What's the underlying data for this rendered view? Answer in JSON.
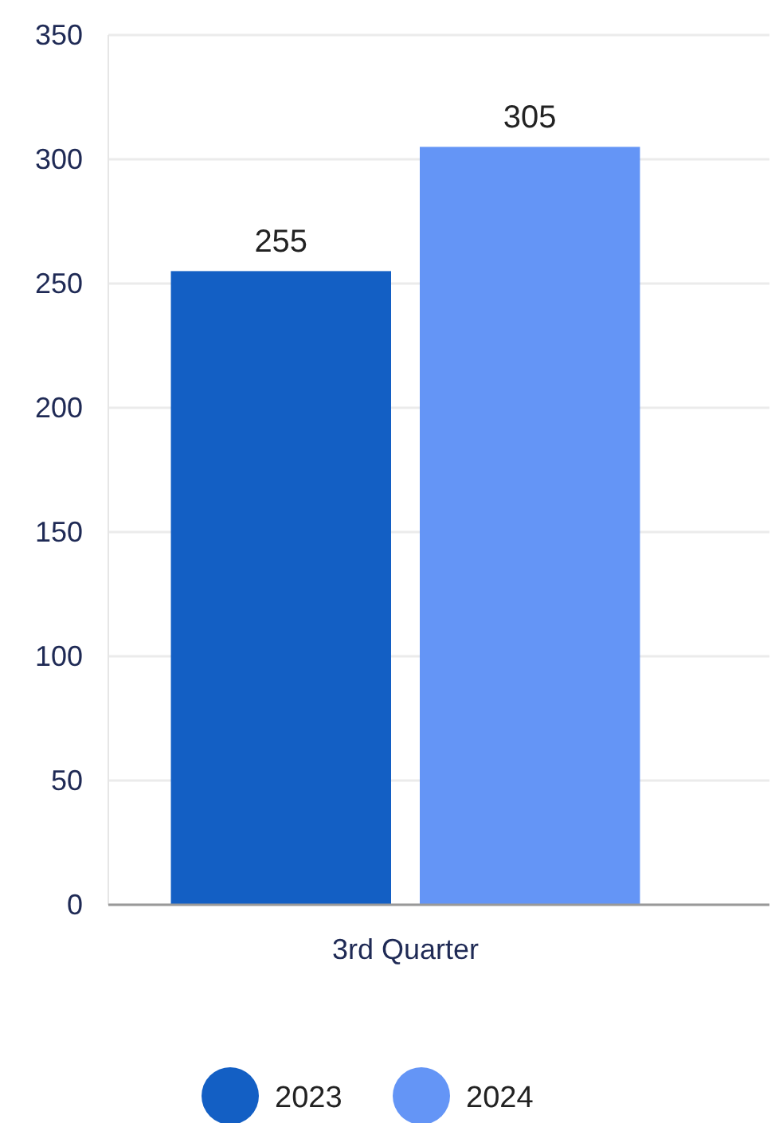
{
  "chart_data": {
    "type": "bar",
    "categories": [
      "3rd Quarter"
    ],
    "series": [
      {
        "name": "2023",
        "color": "#135fc4",
        "values": [
          255
        ]
      },
      {
        "name": "2024",
        "color": "#6495f6",
        "values": [
          305
        ]
      }
    ],
    "ylim": [
      0,
      350
    ],
    "yticks": [
      0,
      50,
      100,
      150,
      200,
      250,
      300,
      350
    ],
    "grid": "y",
    "data_labels": true,
    "legend": "bottom"
  }
}
